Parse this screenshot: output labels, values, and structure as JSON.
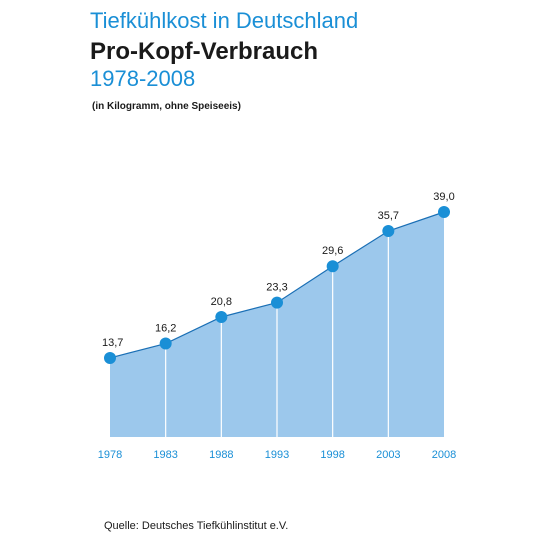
{
  "header": {
    "title_line1": "Tiefkühlkost in Deutschland",
    "title_line2": "Pro-Kopf-Verbrauch",
    "title_line3": "1978-2008",
    "unit_note": "(in Kilogramm, ohne Speiseeis)"
  },
  "footer": {
    "source": "Quelle: Deutsches Tiefkühlinstitut e.V."
  },
  "colors": {
    "accent": "#1a8fd6",
    "area_fill": "#9cc8ec",
    "line": "#1a6fb5",
    "point": "#1a8fd6",
    "text": "#1a1a1a"
  },
  "chart_data": {
    "type": "area",
    "title": "Pro-Kopf-Verbrauch",
    "xlabel": "",
    "ylabel": "",
    "categories": [
      "1978",
      "1983",
      "1988",
      "1993",
      "1998",
      "2003",
      "2008"
    ],
    "values": [
      13.7,
      16.2,
      20.8,
      23.3,
      29.6,
      35.7,
      39.0
    ],
    "value_labels": [
      "13,7",
      "16,2",
      "20,8",
      "23,3",
      "29,6",
      "35,7",
      "39,0"
    ],
    "ylim": [
      0,
      39
    ],
    "grid": false,
    "legend": "none"
  }
}
